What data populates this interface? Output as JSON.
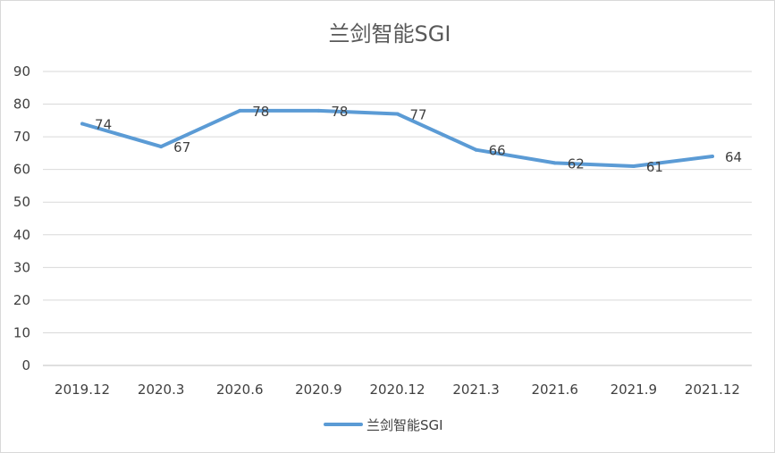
{
  "chart_data": {
    "type": "line",
    "title": "兰剑智能SGI",
    "categories": [
      "2019.12",
      "2020.3",
      "2020.6",
      "2020.9",
      "2020.12",
      "2021.3",
      "2021.6",
      "2021.9",
      "2021.12"
    ],
    "series": [
      {
        "name": "兰剑智能SGI",
        "values": [
          74,
          67,
          78,
          78,
          77,
          66,
          62,
          61,
          64
        ]
      }
    ],
    "yticks": [
      "0",
      "10",
      "20",
      "30",
      "40",
      "50",
      "60",
      "70",
      "80",
      "90"
    ],
    "ylim": [
      0,
      90
    ],
    "grid": true,
    "legend_position": "bottom",
    "data_labels": true,
    "colors": {
      "series": "#5b9bd5",
      "grid": "#d9d9d9",
      "text": "#404040",
      "title": "#595959"
    }
  }
}
